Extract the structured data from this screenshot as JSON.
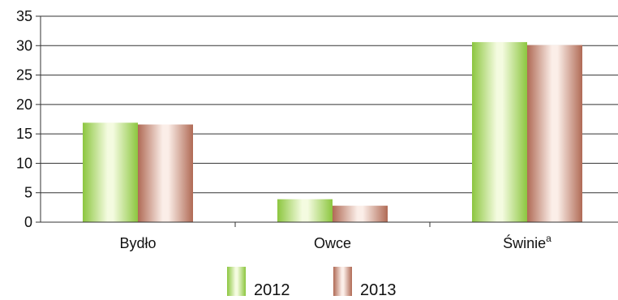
{
  "chart_data": {
    "type": "bar",
    "categories": [
      "Bydło",
      "Owce",
      "Świnie"
    ],
    "category_superscripts": [
      "",
      "",
      "a"
    ],
    "series": [
      {
        "name": "2012",
        "values": [
          16.9,
          3.9,
          30.6
        ],
        "color_light": "#f4fbe0",
        "color_dark": "#8cc63f"
      },
      {
        "name": "2013",
        "values": [
          16.6,
          2.8,
          30.1
        ],
        "color_light": "#fbeee8",
        "color_dark": "#b06a55"
      }
    ],
    "y_ticks": [
      "0",
      "5",
      "10",
      "15",
      "20",
      "25",
      "30",
      "35"
    ],
    "ylim": [
      0,
      35
    ],
    "grid": true,
    "legend_position": "bottom",
    "title": "",
    "xlabel": "",
    "ylabel": ""
  }
}
